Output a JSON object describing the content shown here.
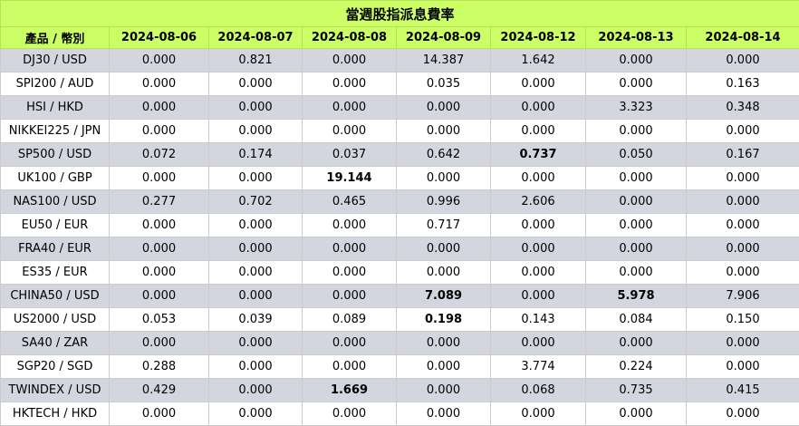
{
  "title": "當週股指派息費率",
  "header": {
    "product_label": "產品 / 幣別",
    "dates": [
      "2024-08-06",
      "2024-08-07",
      "2024-08-08",
      "2024-08-09",
      "2024-08-12",
      "2024-08-13",
      "2024-08-14"
    ]
  },
  "rows": [
    {
      "product": "DJ30 / USD",
      "values": [
        "0.000",
        "0.821",
        "0.000",
        "14.387",
        "1.642",
        "0.000",
        "0.000"
      ],
      "bold": []
    },
    {
      "product": "SPI200 / AUD",
      "values": [
        "0.000",
        "0.000",
        "0.000",
        "0.035",
        "0.000",
        "0.000",
        "0.163"
      ],
      "bold": []
    },
    {
      "product": "HSI / HKD",
      "values": [
        "0.000",
        "0.000",
        "0.000",
        "0.000",
        "0.000",
        "3.323",
        "0.348"
      ],
      "bold": []
    },
    {
      "product": "NIKKEI225 / JPN",
      "values": [
        "0.000",
        "0.000",
        "0.000",
        "0.000",
        "0.000",
        "0.000",
        "0.000"
      ],
      "bold": []
    },
    {
      "product": "SP500 / USD",
      "values": [
        "0.072",
        "0.174",
        "0.037",
        "0.642",
        "0.737",
        "0.050",
        "0.167"
      ],
      "bold": [
        4
      ]
    },
    {
      "product": "UK100 / GBP",
      "values": [
        "0.000",
        "0.000",
        "19.144",
        "0.000",
        "0.000",
        "0.000",
        "0.000"
      ],
      "bold": [
        2
      ]
    },
    {
      "product": "NAS100 / USD",
      "values": [
        "0.277",
        "0.702",
        "0.465",
        "0.996",
        "2.606",
        "0.000",
        "0.000"
      ],
      "bold": []
    },
    {
      "product": "EU50 / EUR",
      "values": [
        "0.000",
        "0.000",
        "0.000",
        "0.717",
        "0.000",
        "0.000",
        "0.000"
      ],
      "bold": []
    },
    {
      "product": "FRA40 / EUR",
      "values": [
        "0.000",
        "0.000",
        "0.000",
        "0.000",
        "0.000",
        "0.000",
        "0.000"
      ],
      "bold": []
    },
    {
      "product": "ES35 / EUR",
      "values": [
        "0.000",
        "0.000",
        "0.000",
        "0.000",
        "0.000",
        "0.000",
        "0.000"
      ],
      "bold": []
    },
    {
      "product": "CHINA50 / USD",
      "values": [
        "0.000",
        "0.000",
        "0.000",
        "7.089",
        "0.000",
        "5.978",
        "7.906"
      ],
      "bold": [
        3,
        5
      ]
    },
    {
      "product": "US2000 / USD",
      "values": [
        "0.053",
        "0.039",
        "0.089",
        "0.198",
        "0.143",
        "0.084",
        "0.150"
      ],
      "bold": [
        3
      ]
    },
    {
      "product": "SA40 / ZAR",
      "values": [
        "0.000",
        "0.000",
        "0.000",
        "0.000",
        "0.000",
        "0.000",
        "0.000"
      ],
      "bold": []
    },
    {
      "product": "SGP20 / SGD",
      "values": [
        "0.288",
        "0.000",
        "0.000",
        "0.000",
        "3.774",
        "0.224",
        "0.000"
      ],
      "bold": []
    },
    {
      "product": "TWINDEX / USD",
      "values": [
        "0.429",
        "0.000",
        "1.669",
        "0.000",
        "0.068",
        "0.735",
        "0.415"
      ],
      "bold": [
        2
      ]
    },
    {
      "product": "HKTECH / HKD",
      "values": [
        "0.000",
        "0.000",
        "0.000",
        "0.000",
        "0.000",
        "0.000",
        "0.000"
      ],
      "bold": []
    }
  ]
}
